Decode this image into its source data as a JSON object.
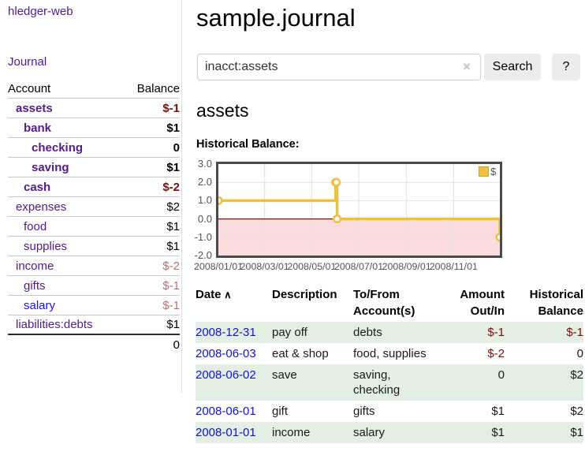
{
  "app": {
    "brand": "hledger-web",
    "nav_journal": "Journal"
  },
  "sidebar": {
    "accounts_header": {
      "account": "Account",
      "balance": "Balance"
    },
    "accounts": [
      {
        "name": "assets",
        "indent": 1,
        "bold": true,
        "balance": "$-1"
      },
      {
        "name": "bank",
        "indent": 2,
        "bold": true,
        "balance": "$1"
      },
      {
        "name": "checking",
        "indent": 3,
        "bold": true,
        "balance": "0"
      },
      {
        "name": "saving",
        "indent": 3,
        "bold": true,
        "balance": "$1"
      },
      {
        "name": "cash",
        "indent": 2,
        "bold": true,
        "balance": "$-2"
      },
      {
        "name": "expenses",
        "indent": 1,
        "bold": false,
        "balance": "$2"
      },
      {
        "name": "food",
        "indent": 2,
        "bold": false,
        "balance": "$1"
      },
      {
        "name": "supplies",
        "indent": 2,
        "bold": false,
        "balance": "$1"
      },
      {
        "name": "income",
        "indent": 1,
        "bold": false,
        "balance": "$-2"
      },
      {
        "name": "gifts",
        "indent": 2,
        "bold": false,
        "balance": "$-1"
      },
      {
        "name": "salary",
        "indent": 2,
        "bold": false,
        "balance": "$-1",
        "unvisited": true
      },
      {
        "name": "liabilities:debts",
        "indent": 1,
        "bold": false,
        "balance": "$1"
      }
    ],
    "total": "0"
  },
  "header": {
    "title": "sample.journal"
  },
  "search": {
    "value": "inacct:assets",
    "clear_icon": "×",
    "button": "Search",
    "help_button": "?"
  },
  "account_page": {
    "heading": "assets",
    "chart_label": "Historical Balance:"
  },
  "chart_data": {
    "type": "line",
    "step": true,
    "title": "Historical Balance",
    "series": [
      {
        "name": "$",
        "color": "#edc240",
        "points": [
          [
            "2008-01-01",
            1
          ],
          [
            "2008-06-01",
            2
          ],
          [
            "2008-06-02",
            2
          ],
          [
            "2008-06-03",
            0
          ],
          [
            "2008-12-31",
            -1
          ]
        ]
      }
    ],
    "xlim": [
      "2008-01-01",
      "2008-12-31"
    ],
    "ylim": [
      -2,
      3
    ],
    "x_ticks": [
      "2008/01/01",
      "2008/03/01",
      "2008/05/01",
      "2008/07/01",
      "2008/09/01",
      "2008/11/01"
    ],
    "y_ticks": [
      "3.0",
      "2.0",
      "1.0",
      "0.0",
      "-1.0",
      "-2.0"
    ],
    "legend": {
      "label": "$",
      "position": "top-right"
    },
    "grid": true,
    "negative_fill": "#fadcdc",
    "zero_line_color": "#8f1010",
    "grid_color": "#e3e3e3"
  },
  "register": {
    "columns": [
      {
        "label": "Date",
        "sort_icon": "∧",
        "align": "left"
      },
      {
        "label": "Description",
        "align": "left"
      },
      {
        "label": "To/From Account(s)",
        "align": "left"
      },
      {
        "label": "Amount Out/In",
        "align": "right"
      },
      {
        "label": "Historical Balance",
        "align": "right"
      }
    ],
    "rows": [
      {
        "date": "2008-12-31",
        "description": "pay off",
        "accounts": "debts",
        "amount": "$-1",
        "balance": "$-1"
      },
      {
        "date": "2008-06-03",
        "description": "eat & shop",
        "accounts": "food, supplies",
        "amount": "$-2",
        "balance": "0"
      },
      {
        "date": "2008-06-02",
        "description": "save",
        "accounts": "saving, checking",
        "amount": "0",
        "balance": "$2"
      },
      {
        "date": "2008-06-01",
        "description": "gift",
        "accounts": "gifts",
        "amount": "$1",
        "balance": "$2"
      },
      {
        "date": "2008-01-01",
        "description": "income",
        "accounts": "salary",
        "amount": "$1",
        "balance": "$1"
      }
    ]
  },
  "colors": {
    "link_visited_purple": "#551a8b",
    "link_blue": "#1111d6",
    "negative_strong": "#7c0d0d",
    "negative_soft": "#b97070",
    "row_stripe_green": "#e3efe3",
    "button_bg": "#ececec",
    "series_yellow": "#edc240"
  }
}
